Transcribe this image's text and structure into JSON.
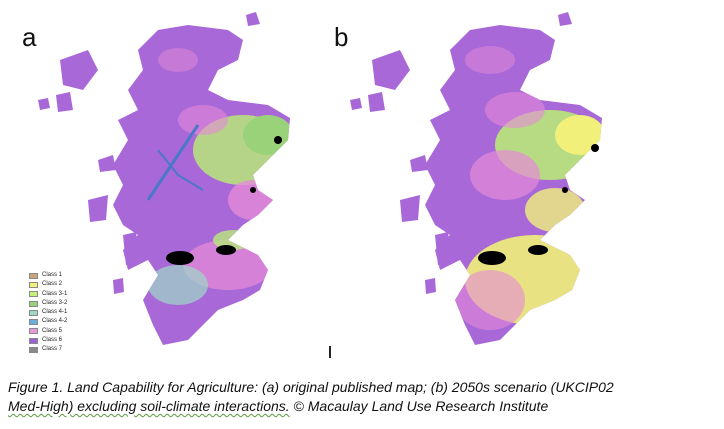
{
  "panels": [
    {
      "label": "a",
      "variant": "original"
    },
    {
      "label": "b",
      "variant": "2050s"
    }
  ],
  "legend": [
    {
      "label": "Class 1",
      "color": "#c8a878"
    },
    {
      "label": "Class 2",
      "color": "#f0f07a"
    },
    {
      "label": "Class 3-1",
      "color": "#c8f07a"
    },
    {
      "label": "Class 3-2",
      "color": "#9ad27a"
    },
    {
      "label": "Class 4-1",
      "color": "#9ed8c8"
    },
    {
      "label": "Class 4-2",
      "color": "#6ab0d8"
    },
    {
      "label": "Class 5",
      "color": "#e69ad8"
    },
    {
      "label": "Class 6",
      "color": "#9a62d2"
    },
    {
      "label": "Class 7",
      "color": "#8a8a8a"
    }
  ],
  "caption": {
    "line1": "Figure 1. Land Capability for Agriculture: (a) original published map; (b) 2050s scenario (UKCIP02",
    "line2_underlined": "Med-High) excluding soil-climate interactions.",
    "line2_rest": " © Macaulay Land Use Research Institute"
  },
  "colors": {
    "mainland": "#a868d8",
    "pink": "#e58ad8",
    "green": "#b8e87a",
    "yellow": "#f0f07a",
    "blue": "#4a78c8",
    "urban": "#000000"
  }
}
